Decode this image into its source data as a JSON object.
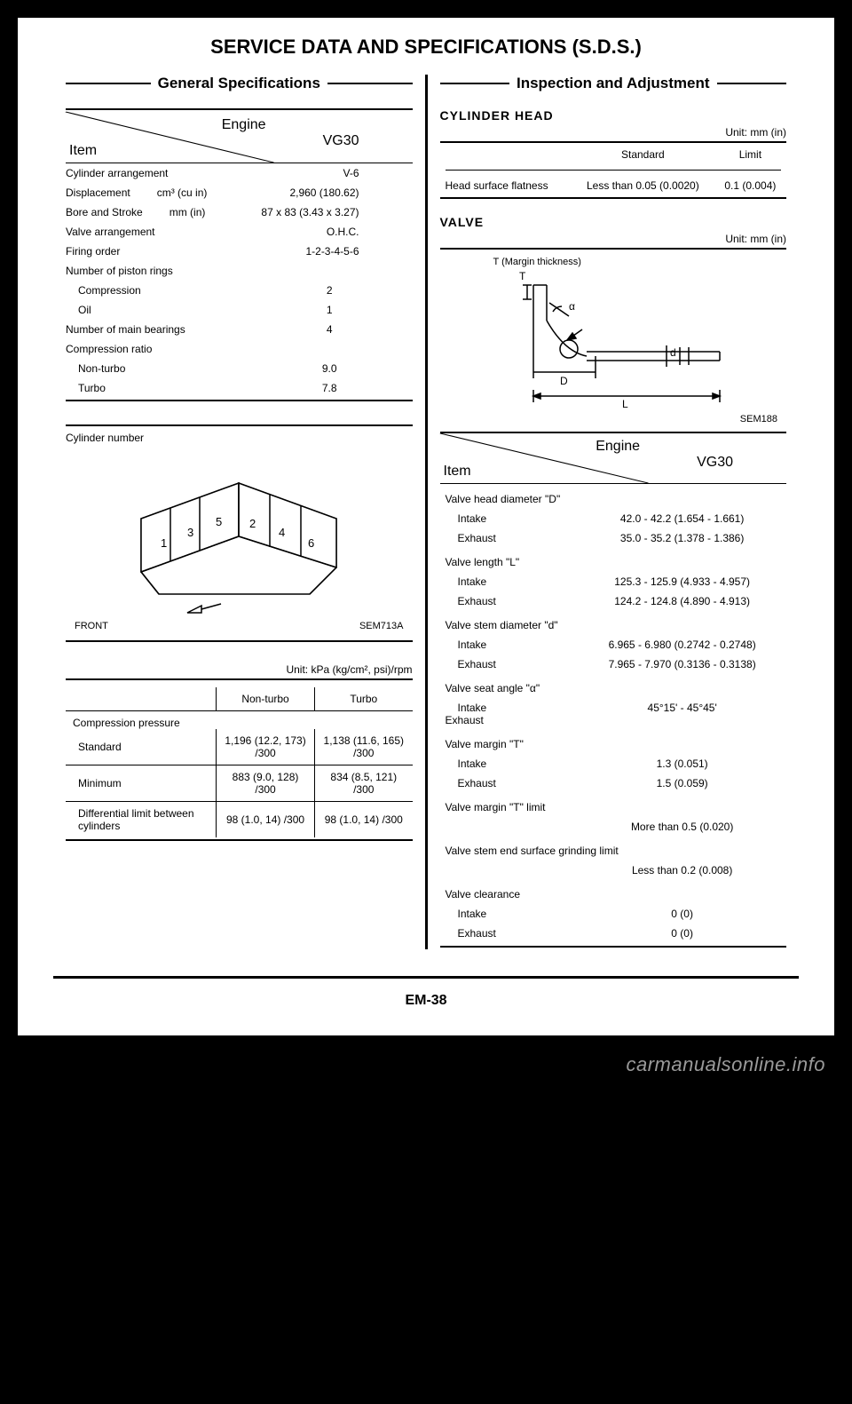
{
  "title": "SERVICE DATA AND SPECIFICATIONS (S.D.S.)",
  "left_section_title": "General Specifications",
  "right_section_title": "Inspection and Adjustment",
  "page_number": "EM-38",
  "watermark": "carmanualsonline.info",
  "engine_header": {
    "engine": "Engine",
    "model": "VG30",
    "item": "Item"
  },
  "general_specs": [
    {
      "label": "Cylinder arrangement",
      "unit": "",
      "value": "V-6"
    },
    {
      "label": "Displacement",
      "unit": "cm³ (cu in)",
      "value": "2,960 (180.62)"
    },
    {
      "label": "Bore and Stroke",
      "unit": "mm (in)",
      "value": "87 x 83 (3.43 x 3.27)"
    },
    {
      "label": "Valve arrangement",
      "unit": "",
      "value": "O.H.C."
    },
    {
      "label": "Firing order",
      "unit": "",
      "value": "1-2-3-4-5-6"
    }
  ],
  "piston_rings": {
    "header": "Number of piston rings",
    "rows": [
      {
        "label": "Compression",
        "value": "2"
      },
      {
        "label": "Oil",
        "value": "1"
      }
    ]
  },
  "main_bearings": {
    "label": "Number of main bearings",
    "value": "4"
  },
  "compression_ratio": {
    "header": "Compression ratio",
    "rows": [
      {
        "label": "Non-turbo",
        "value": "9.0"
      },
      {
        "label": "Turbo",
        "value": "7.8"
      }
    ]
  },
  "cylinder_diagram": {
    "label": "Cylinder number",
    "numbers": [
      "1",
      "2",
      "3",
      "4",
      "5",
      "6"
    ],
    "front": "FRONT",
    "code": "SEM713A"
  },
  "compression_pressure": {
    "unit": "Unit: kPa (kg/cm², psi)/rpm",
    "col1": "Non-turbo",
    "col2": "Turbo",
    "header": "Compression pressure",
    "rows": [
      {
        "label": "Standard",
        "v1": "1,196 (12.2, 173) /300",
        "v2": "1,138 (11.6, 165) /300"
      },
      {
        "label": "Minimum",
        "v1": "883 (9.0, 128) /300",
        "v2": "834 (8.5, 121) /300"
      },
      {
        "label": "Differential limit between cylinders",
        "v1": "98 (1.0, 14) /300",
        "v2": "98 (1.0, 14) /300"
      }
    ]
  },
  "cylinder_head": {
    "title": "CYLINDER HEAD",
    "unit": "Unit: mm (in)",
    "col_std": "Standard",
    "col_lim": "Limit",
    "row_label": "Head surface flatness",
    "std_val": "Less than 0.05 (0.0020)",
    "lim_val": "0.1 (0.004)"
  },
  "valve": {
    "title": "VALVE",
    "unit": "Unit: mm (in)",
    "margin_label": "T (Margin thickness)",
    "diagram_code": "SEM188",
    "labels": {
      "alpha": "α",
      "D": "D",
      "d": "d",
      "L": "L"
    }
  },
  "valve_specs": {
    "groups": [
      {
        "header": "Valve head diameter \"D\"",
        "rows": [
          {
            "label": "Intake",
            "value": "42.0 - 42.2 (1.654 - 1.661)"
          },
          {
            "label": "Exhaust",
            "value": "35.0 - 35.2 (1.378 - 1.386)"
          }
        ]
      },
      {
        "header": "Valve length \"L\"",
        "rows": [
          {
            "label": "Intake",
            "value": "125.3 - 125.9 (4.933 - 4.957)"
          },
          {
            "label": "Exhaust",
            "value": "124.2 - 124.8 (4.890 - 4.913)"
          }
        ]
      },
      {
        "header": "Valve stem diameter \"d\"",
        "rows": [
          {
            "label": "Intake",
            "value": "6.965 - 6.980 (0.2742 - 0.2748)"
          },
          {
            "label": "Exhaust",
            "value": "7.965 - 7.970 (0.3136 - 0.3138)"
          }
        ]
      },
      {
        "header": "Valve seat angle \"α\"",
        "rows": [
          {
            "label": "Intake\nExhaust",
            "value": "45°15' - 45°45'"
          }
        ]
      },
      {
        "header": "Valve margin \"T\"",
        "rows": [
          {
            "label": "Intake",
            "value": "1.3 (0.051)"
          },
          {
            "label": "Exhaust",
            "value": "1.5 (0.059)"
          }
        ]
      },
      {
        "header": "Valve margin \"T\" limit",
        "rows": [
          {
            "label": "",
            "value": "More than 0.5 (0.020)"
          }
        ]
      },
      {
        "header": "Valve stem end surface grinding limit",
        "rows": [
          {
            "label": "",
            "value": "Less than 0.2 (0.008)"
          }
        ]
      },
      {
        "header": "Valve clearance",
        "rows": [
          {
            "label": "Intake",
            "value": "0 (0)"
          },
          {
            "label": "Exhaust",
            "value": "0 (0)"
          }
        ]
      }
    ]
  }
}
